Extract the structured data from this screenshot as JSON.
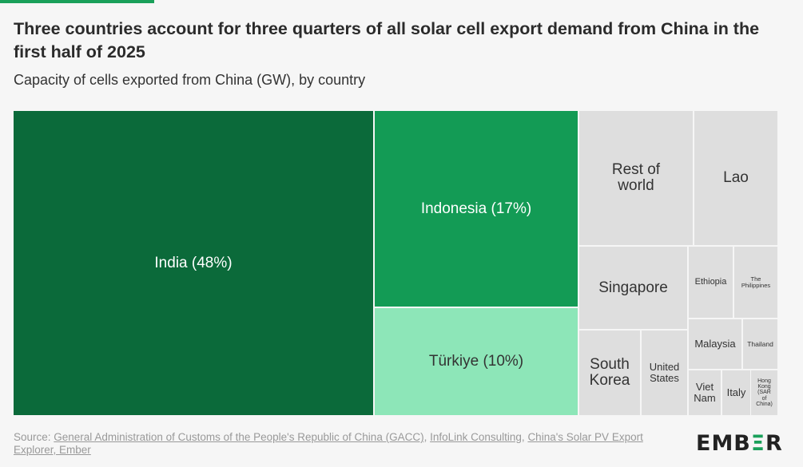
{
  "title": "Three countries account for three quarters of all solar cell export demand from China in the first half of 2025",
  "subtitle": "Capacity of cells exported from China (GW), by country",
  "source": {
    "prefix": "Source: ",
    "links": [
      "General Administration of Customs of the People's Republic of China (GACC)",
      "InfoLink Consulting",
      "China's Solar PV Export Explorer, Ember"
    ]
  },
  "logo": "EMBER",
  "colors": {
    "india": "#0b6a3a",
    "indonesia": "#139b55",
    "turkiye": "#8de6b8",
    "other": "#dedede",
    "accent": "#1aa05a"
  },
  "chart_data": {
    "type": "treemap",
    "title": "Three countries account for three quarters of all solar cell export demand from China in the first half of 2025",
    "subtitle": "Capacity of cells exported from China (GW), by country",
    "items": [
      {
        "label": "India (48%)",
        "country": "India",
        "share_pct": 48
      },
      {
        "label": "Indonesia (17%)",
        "country": "Indonesia",
        "share_pct": 17
      },
      {
        "label": "Türkiye (10%)",
        "country": "Türkiye",
        "share_pct": 10
      },
      {
        "label": "Rest of world"
      },
      {
        "label": "Lao"
      },
      {
        "label": "Singapore"
      },
      {
        "label": "Ethiopia"
      },
      {
        "label": "The Philippines"
      },
      {
        "label": "South Korea"
      },
      {
        "label": "United States"
      },
      {
        "label": "Malaysia"
      },
      {
        "label": "Thailand"
      },
      {
        "label": "Viet Nam"
      },
      {
        "label": "Italy"
      },
      {
        "label": "Hong Kong (SAR of China)"
      }
    ]
  }
}
